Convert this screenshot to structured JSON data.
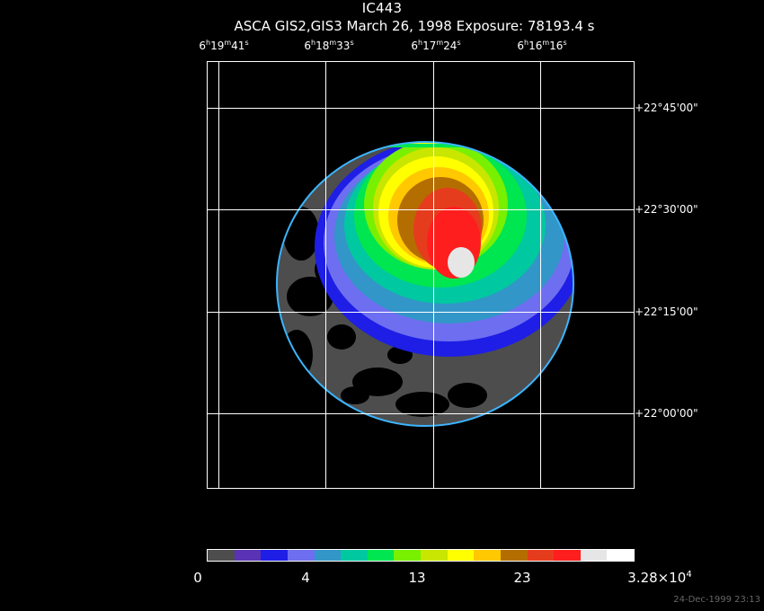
{
  "title": "IC443",
  "subtitle": "ASCA GIS2,GIS3 March 26, 1998 Exposure: 78193.4 s",
  "ra_labels": [
    {
      "h": "6",
      "m": "19",
      "s": "41"
    },
    {
      "h": "6",
      "m": "18",
      "s": "33"
    },
    {
      "h": "6",
      "m": "17",
      "s": "24"
    },
    {
      "h": "6",
      "m": "16",
      "s": "16"
    }
  ],
  "dec_labels": [
    "+22°45'00\"",
    "+22°30'00\"",
    "+22°15'00\"",
    "+22°00'00\""
  ],
  "colorbar": {
    "colors": [
      "#4d4d4d",
      "#5a32b4",
      "#1e1ee6",
      "#6e6ef0",
      "#3296c8",
      "#00c8a0",
      "#00e650",
      "#78f000",
      "#c8e600",
      "#ffff00",
      "#ffc800",
      "#b46e00",
      "#e63c1e",
      "#ff1e1e",
      "#e6e6e6",
      "#ffffff"
    ],
    "labels": [
      "0",
      "4",
      "13",
      "23"
    ],
    "max_label_base": "3.28×10",
    "max_label_exp": "4"
  },
  "timestamp": "24-Dec-1999 23:13",
  "colors": {
    "background": "#000000",
    "grid": "#ffffff",
    "text": "#ffffff"
  }
}
